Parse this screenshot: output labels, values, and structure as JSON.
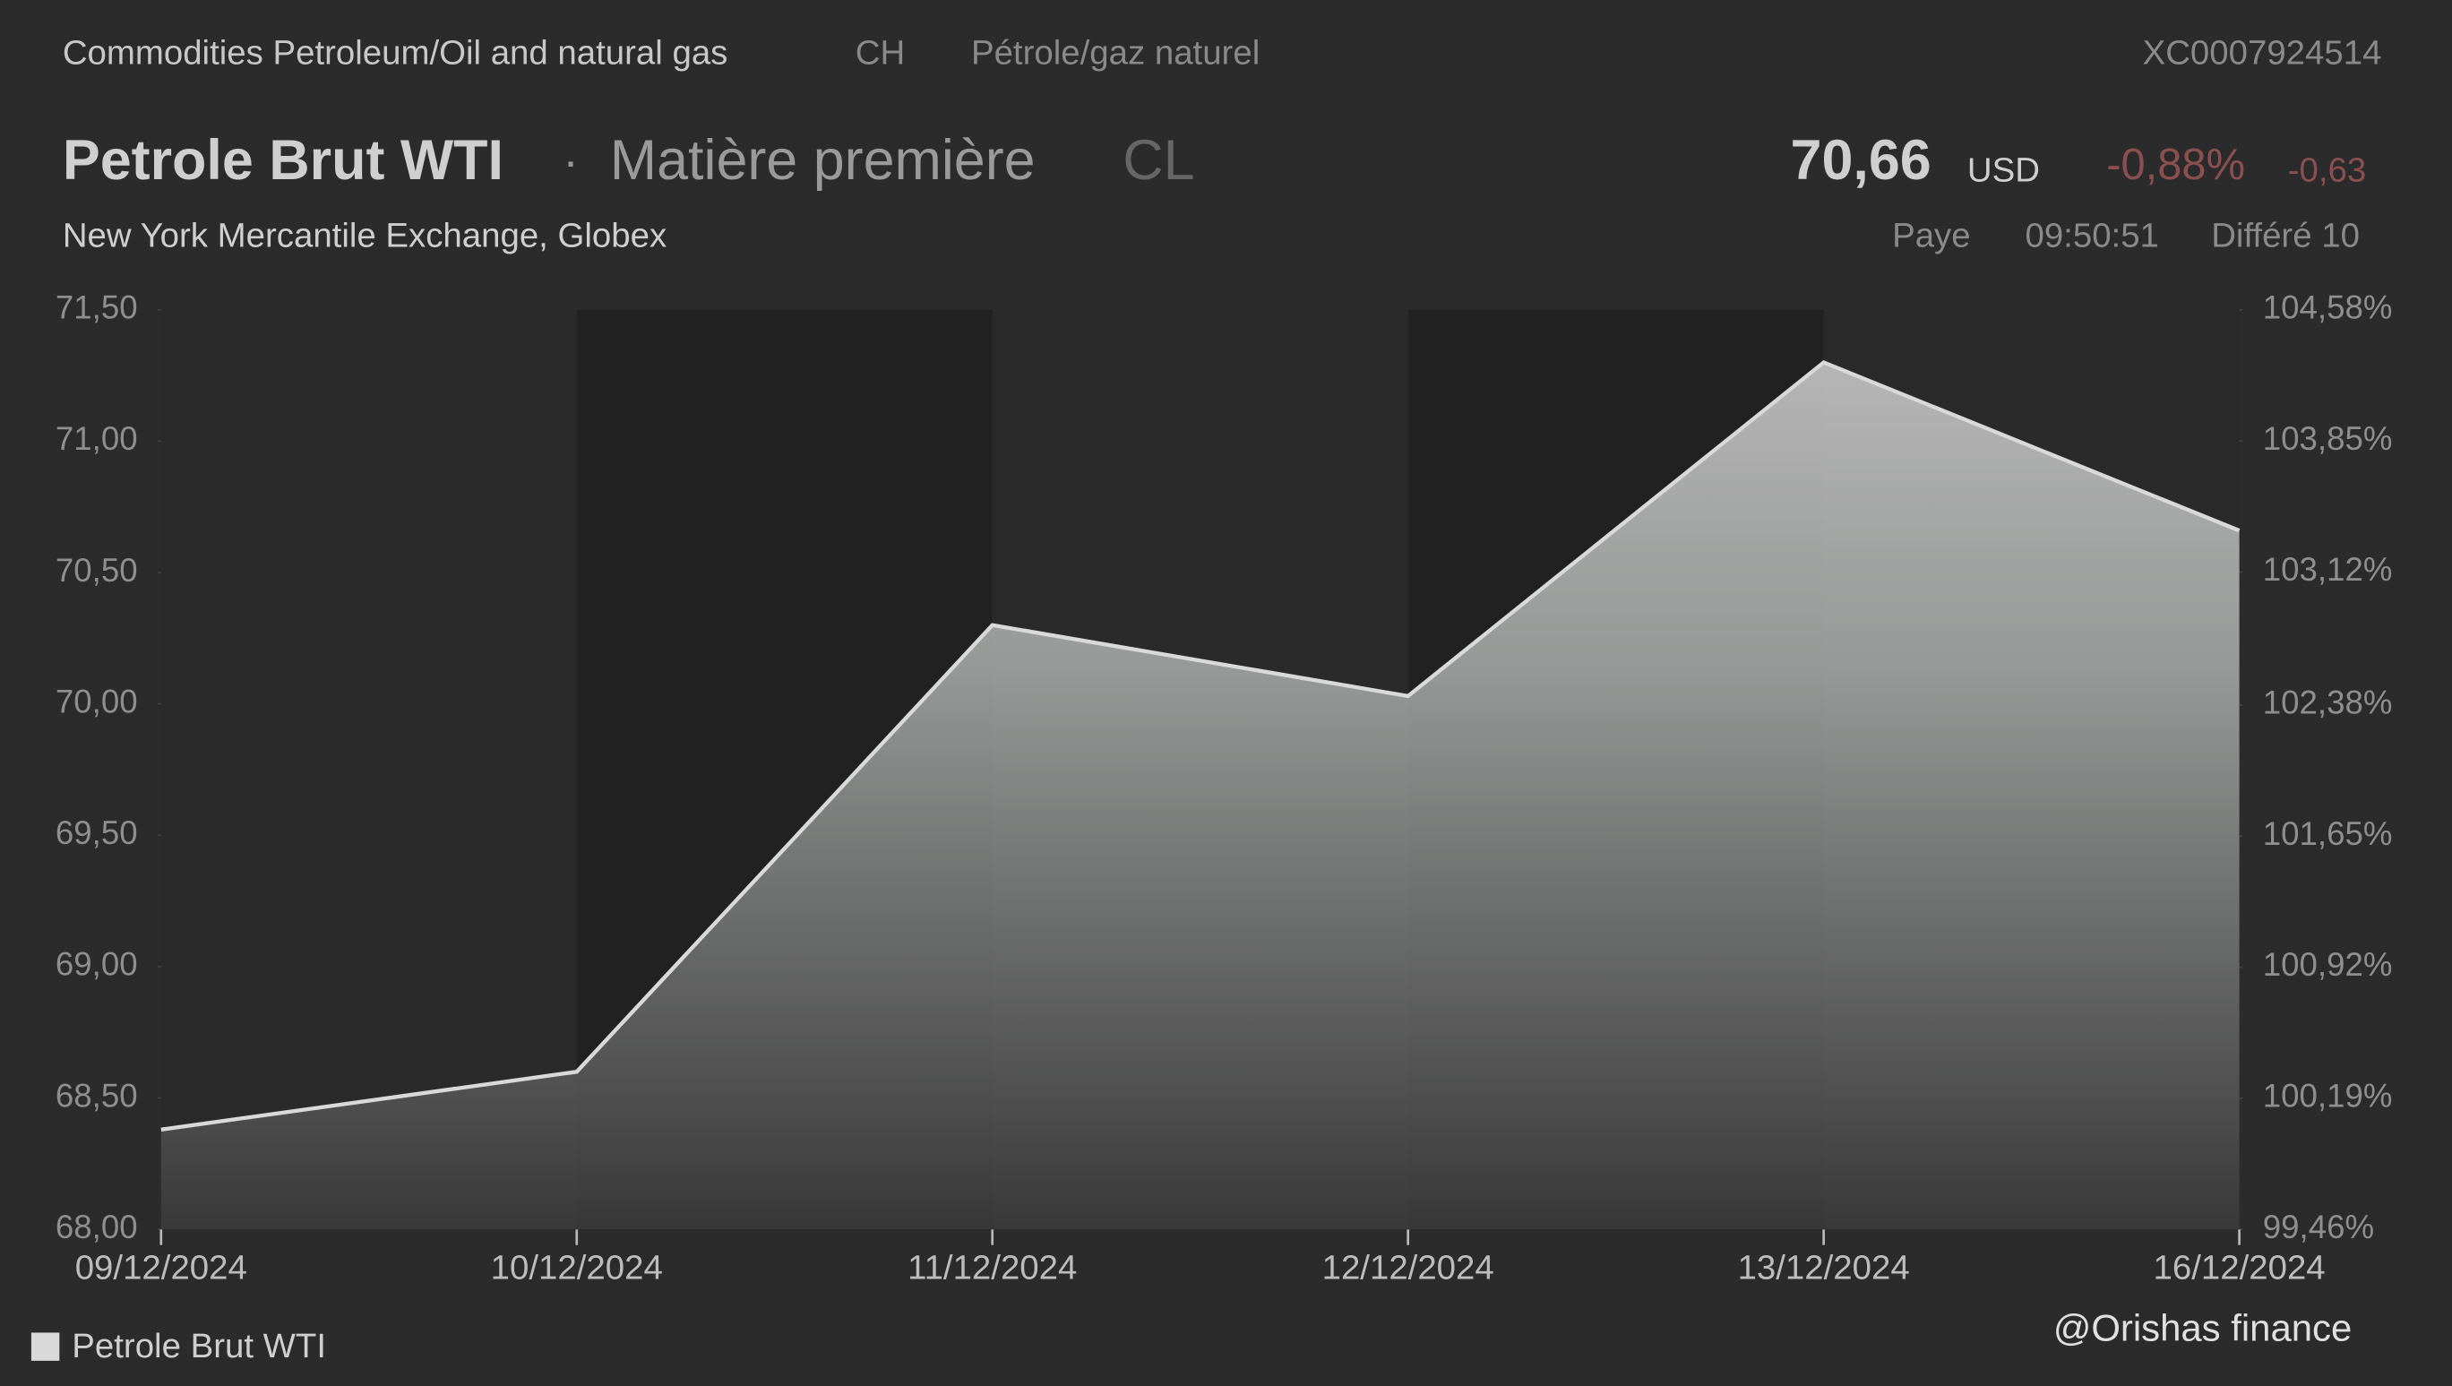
{
  "header": {
    "category": "Commodities Petroleum/Oil and natural gas",
    "country": "CH",
    "category_fr": "Pétrole/gaz naturel",
    "isin": "XC0007924514",
    "name": "Petrole Brut WTI",
    "separator": "·",
    "kind": "Matière première",
    "symbol": "CL",
    "price": "70,66",
    "currency": "USD",
    "change_pct": "-0,88%",
    "change": "-0,63",
    "exchange": "New York Mercantile Exchange, Globex",
    "state": "Paye",
    "time": "09:50:51",
    "delay": "Différé 10"
  },
  "chart_data": {
    "type": "area",
    "categories": [
      "09/12/2024",
      "10/12/2024",
      "11/12/2024",
      "12/12/2024",
      "13/12/2024",
      "16/12/2024"
    ],
    "series": [
      {
        "name": "Petrole Brut WTI",
        "color": "#d9d9d9",
        "values": [
          68.38,
          68.6,
          70.3,
          70.03,
          71.3,
          70.66
        ]
      }
    ],
    "ylim": [
      68,
      71.5
    ],
    "yticks": [
      {
        "value": 68,
        "label": "68,00"
      },
      {
        "value": 68.5,
        "label": "68,50"
      },
      {
        "value": 69,
        "label": "69,00"
      },
      {
        "value": 69.5,
        "label": "69,50"
      },
      {
        "value": 70,
        "label": "70,00"
      },
      {
        "value": 70.5,
        "label": "70,50"
      },
      {
        "value": 71,
        "label": "71,00"
      },
      {
        "value": 71.5,
        "label": "71,50"
      }
    ],
    "y2lim": [
      99.46,
      104.58
    ],
    "y2ticks": [
      {
        "value": 99.46,
        "label": "99,46%"
      },
      {
        "value": 100.19,
        "label": "100,19%"
      },
      {
        "value": 100.92,
        "label": "100,92%"
      },
      {
        "value": 101.65,
        "label": "101,65%"
      },
      {
        "value": 102.38,
        "label": "102,38%"
      },
      {
        "value": 103.12,
        "label": "103,12%"
      },
      {
        "value": 103.85,
        "label": "103,85%"
      },
      {
        "value": 104.58,
        "label": "104,58%"
      }
    ],
    "legend": "bottom-left"
  },
  "watermark": "@Orishas finance"
}
